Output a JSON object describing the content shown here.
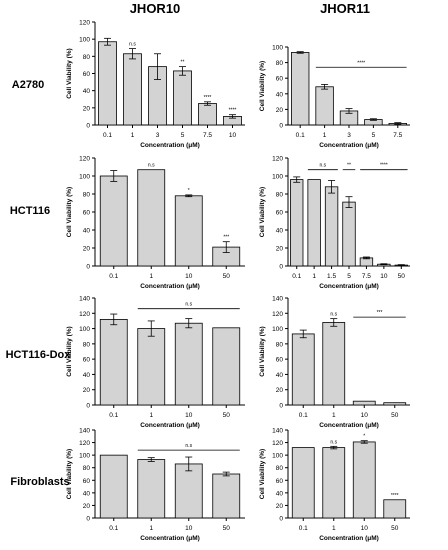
{
  "column_titles": [
    "JHOR10",
    "JHOR11"
  ],
  "row_labels": [
    "A2780",
    "HCT116",
    "HCT116-Dox",
    "Fibroblasts"
  ],
  "xlabel": "Concentration (μM)",
  "ylabel": "Cell Viability (%)",
  "bar_fill": "#d3d3d3",
  "bar_stroke": "#000000",
  "chart_data": [
    {
      "type": "bar",
      "panel": "A2780 / JHOR10",
      "categories": [
        "0.1",
        "1",
        "3",
        "5",
        "7.5",
        "10"
      ],
      "values": [
        97,
        83,
        68,
        63,
        25,
        10
      ],
      "errors": [
        4,
        6,
        15,
        5,
        2,
        2
      ],
      "ylim": [
        0,
        120
      ],
      "yticks": [
        0,
        20,
        40,
        60,
        80,
        100,
        120
      ],
      "annotations": [
        {
          "category": "1",
          "text": "n.s"
        },
        {
          "category": "5",
          "text": "**"
        },
        {
          "category": "7.5",
          "text": "****"
        },
        {
          "category": "10",
          "text": "****"
        }
      ],
      "brackets": []
    },
    {
      "type": "bar",
      "panel": "A2780 / JHOR11",
      "categories": [
        "0.1",
        "1",
        "3",
        "5",
        "7.5"
      ],
      "values": [
        93,
        49,
        18,
        7,
        2
      ],
      "errors": [
        1,
        3,
        3,
        1,
        1
      ],
      "ylim": [
        0,
        100
      ],
      "yticks": [
        0,
        20,
        40,
        60,
        80,
        100
      ],
      "annotations": [],
      "brackets": [
        {
          "from": "1",
          "to": "7.5",
          "text": "****",
          "y": 74
        }
      ]
    },
    {
      "type": "bar",
      "panel": "HCT116 / JHOR10",
      "categories": [
        "0.1",
        "1",
        "10",
        "50"
      ],
      "values": [
        100,
        107,
        78,
        21
      ],
      "errors": [
        6,
        0,
        1,
        6
      ],
      "ylim": [
        0,
        120
      ],
      "yticks": [
        0,
        20,
        40,
        60,
        80,
        100,
        120
      ],
      "annotations": [
        {
          "category": "1",
          "text": "n.s"
        },
        {
          "category": "10",
          "text": "*"
        },
        {
          "category": "50",
          "text": "***"
        }
      ],
      "brackets": []
    },
    {
      "type": "bar",
      "panel": "HCT116 / JHOR11",
      "categories": [
        "0.1",
        "1",
        "1.5",
        "5",
        "7.5",
        "10",
        "50"
      ],
      "values": [
        96,
        96,
        88,
        71,
        9,
        2,
        1
      ],
      "errors": [
        3,
        0,
        7,
        6,
        1,
        0.5,
        0.5
      ],
      "ylim": [
        0,
        120
      ],
      "yticks": [
        0,
        20,
        40,
        60,
        80,
        100,
        120
      ],
      "annotations": [],
      "brackets": [
        {
          "from": "1",
          "to": "1.5",
          "text": "n.s",
          "y": 107
        },
        {
          "from": "5",
          "to": "5",
          "text": "**",
          "y": 107
        },
        {
          "from": "7.5",
          "to": "50",
          "text": "****",
          "y": 107
        }
      ]
    },
    {
      "type": "bar",
      "panel": "HCT116-Dox / JHOR10",
      "categories": [
        "0.1",
        "1",
        "10",
        "50"
      ],
      "values": [
        112,
        100,
        107,
        101
      ],
      "errors": [
        7,
        10,
        6,
        0
      ],
      "ylim": [
        0,
        140
      ],
      "yticks": [
        0,
        20,
        40,
        60,
        80,
        100,
        120,
        140
      ],
      "annotations": [],
      "brackets": [
        {
          "from": "1",
          "to": "50",
          "text": "n.s",
          "y": 126
        }
      ]
    },
    {
      "type": "bar",
      "panel": "HCT116-Dox / JHOR11",
      "categories": [
        "0.1",
        "1",
        "10",
        "50"
      ],
      "values": [
        93,
        108,
        5,
        3
      ],
      "errors": [
        5,
        5,
        0,
        0
      ],
      "ylim": [
        0,
        140
      ],
      "yticks": [
        0,
        20,
        40,
        60,
        80,
        100,
        120,
        140
      ],
      "annotations": [
        {
          "category": "1",
          "text": "n.s"
        }
      ],
      "brackets": [
        {
          "from": "10",
          "to": "50",
          "text": "***",
          "y": 115
        }
      ]
    },
    {
      "type": "bar",
      "panel": "Fibroblasts / JHOR10",
      "categories": [
        "0.1",
        "1",
        "10",
        "50"
      ],
      "values": [
        100,
        93,
        86,
        70
      ],
      "errors": [
        0,
        3,
        11,
        3
      ],
      "ylim": [
        0,
        140
      ],
      "yticks": [
        0,
        20,
        40,
        60,
        80,
        100,
        120,
        140
      ],
      "annotations": [],
      "brackets": [
        {
          "from": "1",
          "to": "50",
          "text": "n.s",
          "y": 108
        }
      ]
    },
    {
      "type": "bar",
      "panel": "Fibroblasts / JHOR11",
      "categories": [
        "0.1",
        "1",
        "10",
        "50"
      ],
      "values": [
        112,
        112,
        121,
        29
      ],
      "errors": [
        0,
        2,
        2,
        0
      ],
      "ylim": [
        0,
        140
      ],
      "yticks": [
        0,
        20,
        40,
        60,
        80,
        100,
        120,
        140
      ],
      "annotations": [
        {
          "category": "1",
          "text": "n.s"
        },
        {
          "category": "10",
          "text": "*"
        },
        {
          "category": "50",
          "text": "****"
        }
      ],
      "brackets": []
    }
  ]
}
